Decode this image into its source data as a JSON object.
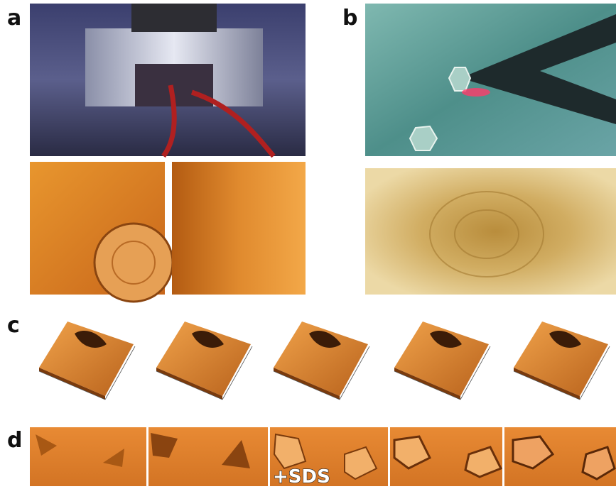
{
  "panels": [
    {
      "label": "a"
    },
    {
      "label": "b"
    },
    {
      "label": "c"
    },
    {
      "label": "d",
      "annotation": "+SDS"
    }
  ]
}
